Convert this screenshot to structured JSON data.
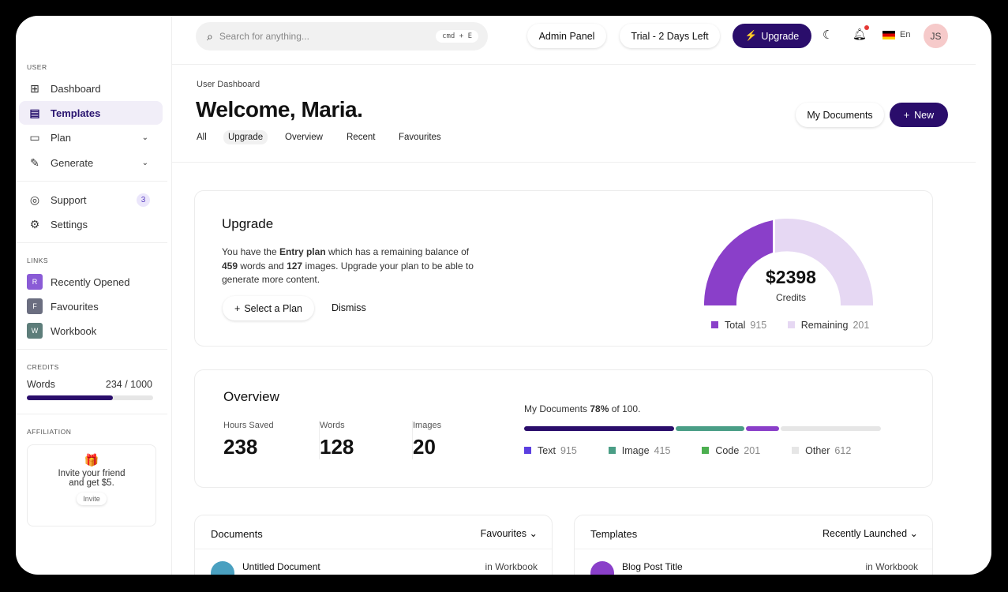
{
  "sidebar": {
    "user_label": "USER",
    "items": [
      {
        "label": "Dashboard",
        "icon": "grid-icon"
      },
      {
        "label": "Templates",
        "icon": "template-icon"
      },
      {
        "label": "Plan",
        "icon": "wallet-icon"
      },
      {
        "label": "Generate",
        "icon": "pen-icon"
      },
      {
        "label": "Support",
        "icon": "lifebuoy-icon",
        "badge": "3"
      },
      {
        "label": "Settings",
        "icon": "gear-icon"
      }
    ],
    "links_label": "LINKS",
    "links": [
      {
        "letter": "R",
        "label": "Recently Opened",
        "color": "#8a5bd6"
      },
      {
        "letter": "F",
        "label": "Favourites",
        "color": "#6b6e80"
      },
      {
        "letter": "W",
        "label": "Workbook",
        "color": "#5d7d7a"
      }
    ],
    "credits_label": "CREDITS",
    "credits": {
      "label": "Words",
      "value": "234 / 1000",
      "fraction": 0.234
    },
    "affiliation_label": "AFFILIATION",
    "affiliation": {
      "text1": "Invite your friend",
      "text2": "and get $5.",
      "button": "Invite"
    }
  },
  "header": {
    "search_placeholder": "Search for anything...",
    "shortcut": "cmd + E",
    "admin": "Admin Panel",
    "trial": "Trial - 2 Days Left",
    "upgrade": "Upgrade",
    "lang": "En",
    "avatar": "JS"
  },
  "page": {
    "breadcrumb": "User Dashboard",
    "title": "Welcome, Maria.",
    "my_documents": "My Documents",
    "new": "New",
    "tabs": [
      "All",
      "Upgrade",
      "Overview",
      "Recent",
      "Favourites"
    ],
    "active_tab": "Upgrade"
  },
  "upgrade": {
    "title": "Upgrade",
    "t1": "You have the ",
    "plan": "Entry plan",
    "t2": " which has a remaining balance of",
    "words": "459",
    "t3": " words and ",
    "images": "127",
    "t4": " images. Upgrade your plan to be able to",
    "t5": "generate more content.",
    "select": "Select a Plan",
    "dismiss": "Dismiss",
    "gauge": {
      "value": "$2398",
      "label": "Credits",
      "total_label": "Total",
      "total": "915",
      "remaining_label": "Remaining",
      "remaining": "201",
      "colors": {
        "total": "#8a3fc9",
        "remaining": "#e6d8f3"
      }
    }
  },
  "overview": {
    "title": "Overview",
    "stats": [
      {
        "label": "Hours Saved",
        "value": "238"
      },
      {
        "label": "Words",
        "value": "128"
      },
      {
        "label": "Images",
        "value": "20"
      }
    ],
    "docs_prefix": "My Documents ",
    "docs_pct": "78%",
    "docs_suffix": " of 100.",
    "segments": [
      {
        "label": "Text",
        "value": "915",
        "color": "#2a0d6b",
        "bar": "#5b3fe0"
      },
      {
        "label": "Image",
        "value": "415",
        "color": "#4a9e86",
        "bar": "#4a9e86"
      },
      {
        "label": "Code",
        "value": "201",
        "color": "#8a3fc9",
        "bar": "#4caf50"
      },
      {
        "label": "Other",
        "value": "612",
        "color": "#e6e6e6",
        "bar": "#e6e6e6"
      }
    ]
  },
  "documents": {
    "title": "Documents",
    "filter": "Favourites",
    "row": "Untitled Document",
    "loc": "in Workbook"
  },
  "templates": {
    "title": "Templates",
    "filter": "Recently Launched",
    "row": "Blog Post Title",
    "loc": "in Workbook"
  }
}
